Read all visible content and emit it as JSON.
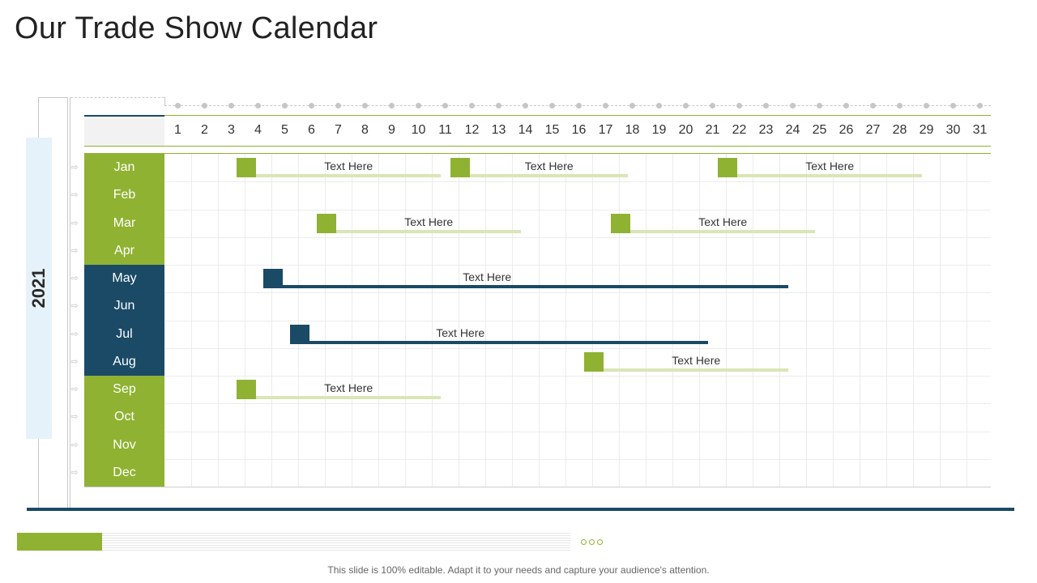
{
  "title": "Our Trade Show Calendar",
  "year": "2021",
  "colors": {
    "green": "#8fb232",
    "navy": "#1a4a66",
    "light_green": "#d9e6b5",
    "year_band": "#e6f2f9"
  },
  "days": [
    "1",
    "2",
    "3",
    "4",
    "5",
    "6",
    "7",
    "8",
    "9",
    "10",
    "11",
    "12",
    "13",
    "14",
    "15",
    "16",
    "17",
    "18",
    "19",
    "20",
    "21",
    "22",
    "23",
    "24",
    "25",
    "26",
    "27",
    "28",
    "29",
    "30",
    "31"
  ],
  "months": [
    {
      "label": "Jan",
      "theme": "green"
    },
    {
      "label": "Feb",
      "theme": "green"
    },
    {
      "label": "Mar",
      "theme": "green"
    },
    {
      "label": "Apr",
      "theme": "green"
    },
    {
      "label": "May",
      "theme": "navy"
    },
    {
      "label": "Jun",
      "theme": "navy"
    },
    {
      "label": "Jul",
      "theme": "navy"
    },
    {
      "label": "Aug",
      "theme": "navy"
    },
    {
      "label": "Sep",
      "theme": "green"
    },
    {
      "label": "Oct",
      "theme": "green"
    },
    {
      "label": "Nov",
      "theme": "green"
    },
    {
      "label": "Dec",
      "theme": "green"
    }
  ],
  "events": [
    {
      "month": "Jan",
      "start_day": 3,
      "end_day": 10,
      "label": "Text Here",
      "theme": "green"
    },
    {
      "month": "Jan",
      "start_day": 11,
      "end_day": 17,
      "label": "Text Here",
      "theme": "green"
    },
    {
      "month": "Jan",
      "start_day": 21,
      "end_day": 28,
      "label": "Text Here",
      "theme": "green"
    },
    {
      "month": "Mar",
      "start_day": 6,
      "end_day": 13,
      "label": "Text Here",
      "theme": "green"
    },
    {
      "month": "Mar",
      "start_day": 17,
      "end_day": 24,
      "label": "Text Here",
      "theme": "green"
    },
    {
      "month": "May",
      "start_day": 4,
      "end_day": 23,
      "label": "Text Here",
      "theme": "navy"
    },
    {
      "month": "Jul",
      "start_day": 5,
      "end_day": 20,
      "label": "Text Here",
      "theme": "navy"
    },
    {
      "month": "Aug",
      "start_day": 16,
      "end_day": 23,
      "label": "Text Here",
      "theme": "green"
    },
    {
      "month": "Sep",
      "start_day": 3,
      "end_day": 10,
      "label": "Text Here",
      "theme": "green"
    }
  ],
  "footer_note": "This slide is 100% editable. Adapt it to your needs and capture your audience's attention."
}
